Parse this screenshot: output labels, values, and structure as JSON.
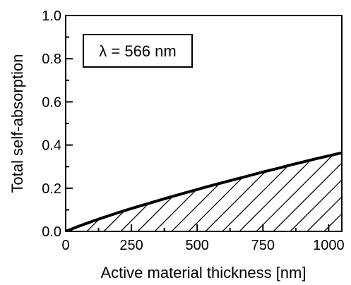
{
  "chart_data": {
    "type": "area",
    "title": "",
    "xlabel": "Active material thickness [nm]",
    "ylabel": "Total self-absorption",
    "xlim": [
      0,
      1050
    ],
    "ylim": [
      0.0,
      1.0
    ],
    "x_ticks": [
      "0",
      "250",
      "500",
      "750",
      "1000"
    ],
    "y_ticks": [
      "0.0",
      "0.2",
      "0.4",
      "0.6",
      "0.8",
      "1.0"
    ],
    "annotation": "λ = 566 nm",
    "grid": false,
    "fill": "hatched",
    "line_color": "#000000",
    "series": [
      {
        "x": [
          0,
          50,
          100,
          150,
          200,
          250,
          300,
          350,
          400,
          450,
          500,
          550,
          600,
          650,
          700,
          750,
          800,
          850,
          900,
          950,
          1000,
          1050
        ],
        "y": [
          0.0,
          0.024,
          0.046,
          0.067,
          0.087,
          0.106,
          0.124,
          0.142,
          0.16,
          0.177,
          0.194,
          0.211,
          0.227,
          0.243,
          0.259,
          0.275,
          0.29,
          0.306,
          0.321,
          0.336,
          0.35,
          0.364
        ]
      }
    ]
  }
}
